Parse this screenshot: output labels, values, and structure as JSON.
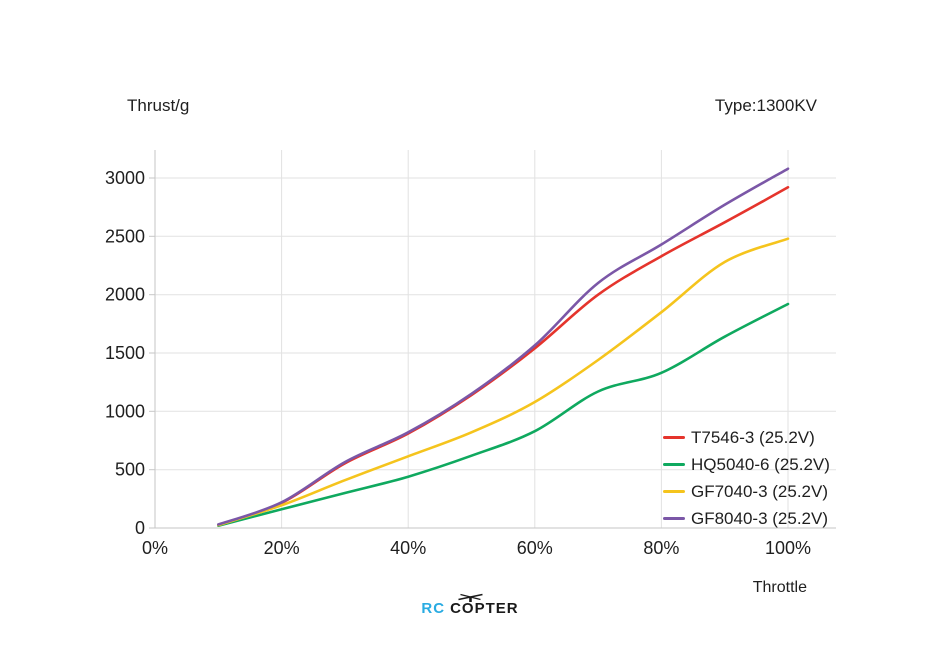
{
  "page": {
    "ylabel": "Thrust/g",
    "type_label": "Type:1300KV",
    "xlabel": "Throttle",
    "logo": {
      "prefix": "RC",
      "c1": "C",
      "o": "O",
      "rest": "PTER",
      "accent_color": "#29abe2",
      "text_color": "#1a1a1a"
    }
  },
  "chart_data": {
    "type": "line",
    "title": "Type:1300KV",
    "ylabel": "Thrust/g",
    "xlabel": "Throttle",
    "x": [
      10,
      20,
      30,
      40,
      50,
      60,
      70,
      80,
      90,
      100
    ],
    "x_unit": "%",
    "series": [
      {
        "name": "T7546-3 (25.2V)",
        "color": "#e5342c",
        "values": [
          25,
          215,
          555,
          810,
          1140,
          1540,
          2000,
          2330,
          2620,
          2920
        ]
      },
      {
        "name": "HQ5040-6 (25.2V)",
        "color": "#0fa95f",
        "values": [
          20,
          160,
          300,
          440,
          620,
          830,
          1170,
          1330,
          1640,
          1920
        ]
      },
      {
        "name": "GF7040-3 (25.2V)",
        "color": "#f5c41d",
        "values": [
          25,
          195,
          410,
          615,
          820,
          1080,
          1440,
          1850,
          2280,
          2480
        ]
      },
      {
        "name": "GF8040-3 (25.2V)",
        "color": "#7b57a7",
        "values": [
          30,
          220,
          565,
          820,
          1150,
          1565,
          2100,
          2430,
          2770,
          3080
        ]
      }
    ],
    "x_tick_values": [
      0,
      20,
      40,
      60,
      80,
      100
    ],
    "x_tick_labels": [
      "0%",
      "20%",
      "40%",
      "60%",
      "80%",
      "100%"
    ],
    "y_tick_values": [
      0,
      500,
      1000,
      1500,
      2000,
      2500,
      3000
    ],
    "y_tick_labels": [
      "0",
      "500",
      "1000",
      "1500",
      "2000",
      "2500",
      "3000"
    ],
    "xlim": [
      0,
      100
    ],
    "ylim": [
      0,
      3000
    ],
    "grid": true,
    "legend_position": "inside-bottom-right",
    "grid_color": "#e2e2e2",
    "axis_color": "#c6c6c6",
    "tick_text_color": "#1f1f1f"
  }
}
